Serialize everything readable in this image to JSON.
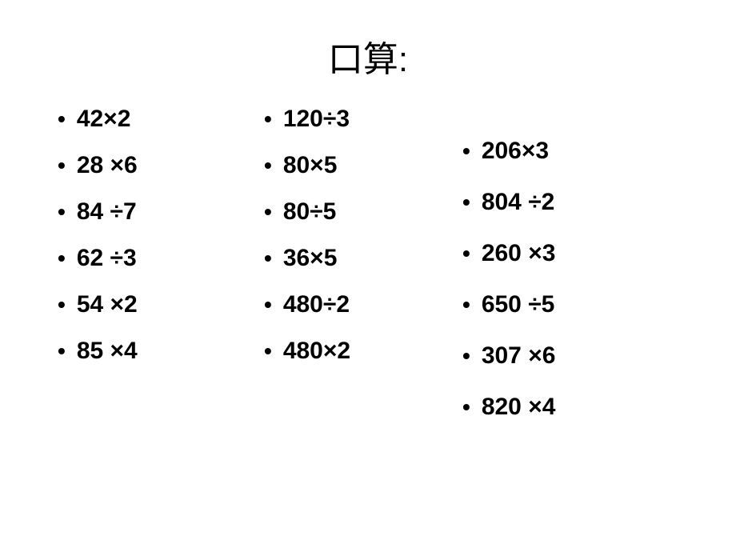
{
  "title": "口算:",
  "columns": {
    "col1": [
      "42×2",
      "28 ×6",
      "84 ÷7",
      "62 ÷3",
      "54 ×2",
      "85 ×4"
    ],
    "col2": [
      "120÷3",
      "80×5",
      "80÷5",
      "36×5",
      "480÷2",
      "480×2"
    ],
    "col3": [
      "206×3",
      "804 ÷2",
      "260 ×3",
      "650 ÷5",
      "307 ×6",
      "820 ×4"
    ]
  },
  "style": {
    "background_color": "#ffffff",
    "text_color": "#000000",
    "title_fontsize": 44,
    "item_fontsize": 30,
    "item_fontweight": "bold",
    "bullet_char": "•"
  }
}
